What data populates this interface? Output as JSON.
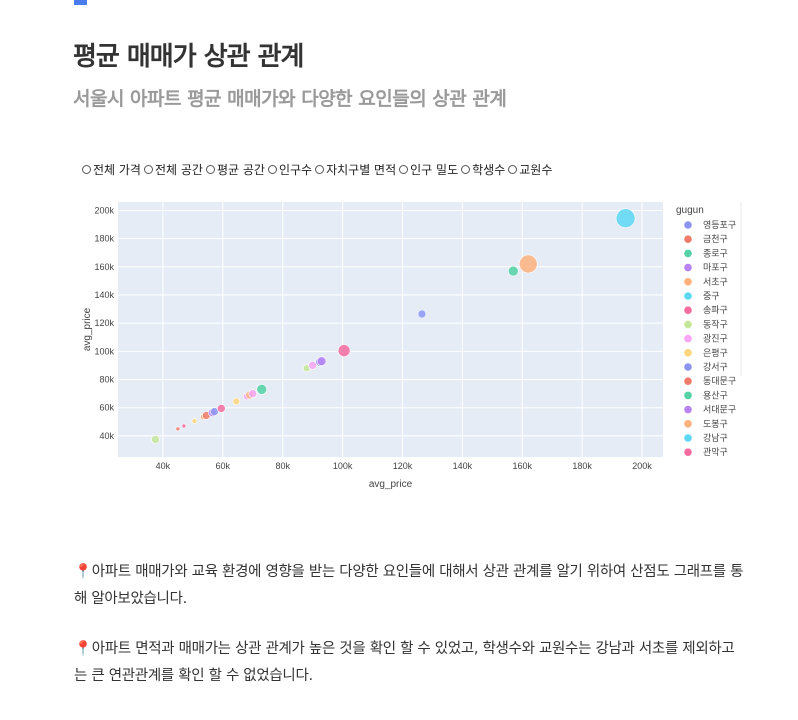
{
  "header": {
    "title": "평균 매매가 상관 관계",
    "subtitle": "서울시 아파트 평균 매매가와 다양한 요인들의 상관 관계"
  },
  "radio_options": [
    "전체 가격",
    "전체 공간",
    "평균 공간",
    "인구수",
    "자치구별 면적",
    "인구 밀도",
    "학생수",
    "교원수"
  ],
  "chart_data": {
    "type": "scatter",
    "title": "",
    "xlabel": "avg_price",
    "ylabel": "avg_price",
    "xlim": [
      25000,
      207000
    ],
    "ylim": [
      25000,
      206000
    ],
    "xticks": [
      40000,
      60000,
      80000,
      100000,
      120000,
      140000,
      160000,
      180000,
      200000
    ],
    "yticks": [
      40000,
      60000,
      80000,
      100000,
      120000,
      140000,
      160000,
      180000,
      200000
    ],
    "xtick_labels": [
      "40k",
      "60k",
      "80k",
      "100k",
      "120k",
      "140k",
      "160k",
      "180k",
      "200k"
    ],
    "ytick_labels": [
      "40k",
      "60k",
      "80k",
      "100k",
      "120k",
      "140k",
      "160k",
      "180k",
      "200k"
    ],
    "legend_title": "gugun",
    "legend_position": "right",
    "legend_entries": [
      {
        "name": "영등포구",
        "color": "#8c96f2"
      },
      {
        "name": "금천구",
        "color": "#ef7c6a"
      },
      {
        "name": "종로구",
        "color": "#53d2a6"
      },
      {
        "name": "마포구",
        "color": "#b983f2"
      },
      {
        "name": "서초구",
        "color": "#fdb27c"
      },
      {
        "name": "중구",
        "color": "#5dd8f4"
      },
      {
        "name": "송파구",
        "color": "#f66ba0"
      },
      {
        "name": "동작구",
        "color": "#c5e69a"
      },
      {
        "name": "광진구",
        "color": "#f8a5f5"
      },
      {
        "name": "은평구",
        "color": "#fcd67c"
      },
      {
        "name": "강서구",
        "color": "#8c96f2"
      },
      {
        "name": "동대문구",
        "color": "#ef7c6a"
      },
      {
        "name": "용산구",
        "color": "#53d2a6"
      },
      {
        "name": "서대문구",
        "color": "#b983f2"
      },
      {
        "name": "도봉구",
        "color": "#fdb27c"
      },
      {
        "name": "강남구",
        "color": "#5dd8f4"
      },
      {
        "name": "관악구",
        "color": "#f66ba0"
      }
    ],
    "points": [
      {
        "x": 37500,
        "y": 37500,
        "size": 4,
        "color": "#c5e69a"
      },
      {
        "x": 45000,
        "y": 45000,
        "size": 2,
        "color": "#ef7c6a"
      },
      {
        "x": 47000,
        "y": 47000,
        "size": 2,
        "color": "#f66ba0"
      },
      {
        "x": 50500,
        "y": 50500,
        "size": 2.5,
        "color": "#fcd67c"
      },
      {
        "x": 53500,
        "y": 53500,
        "size": 3,
        "color": "#fdb27c"
      },
      {
        "x": 54500,
        "y": 54500,
        "size": 4,
        "color": "#ef7c6a"
      },
      {
        "x": 56500,
        "y": 56500,
        "size": 4,
        "color": "#b983f2"
      },
      {
        "x": 57200,
        "y": 57200,
        "size": 4,
        "color": "#8c96f2"
      },
      {
        "x": 59500,
        "y": 59500,
        "size": 4,
        "color": "#f66ba0"
      },
      {
        "x": 64500,
        "y": 64500,
        "size": 3.5,
        "color": "#fcd67c"
      },
      {
        "x": 68000,
        "y": 68000,
        "size": 3.5,
        "color": "#f8a5f5"
      },
      {
        "x": 69000,
        "y": 69000,
        "size": 4,
        "color": "#fdb27c"
      },
      {
        "x": 70000,
        "y": 70000,
        "size": 4,
        "color": "#f8a5f5"
      },
      {
        "x": 73000,
        "y": 73000,
        "size": 5,
        "color": "#53d2a6"
      },
      {
        "x": 88000,
        "y": 88000,
        "size": 3.5,
        "color": "#c5e69a"
      },
      {
        "x": 90000,
        "y": 90000,
        "size": 4,
        "color": "#f8a5f5"
      },
      {
        "x": 92500,
        "y": 92500,
        "size": 4.5,
        "color": "#8c96f2"
      },
      {
        "x": 93000,
        "y": 93000,
        "size": 4.5,
        "color": "#b983f2"
      },
      {
        "x": 100500,
        "y": 100500,
        "size": 6,
        "color": "#f66ba0"
      },
      {
        "x": 126500,
        "y": 126500,
        "size": 4,
        "color": "#8c96f2"
      },
      {
        "x": 157000,
        "y": 157000,
        "size": 5,
        "color": "#53d2a6"
      },
      {
        "x": 162000,
        "y": 162000,
        "size": 9,
        "color": "#fdb27c"
      },
      {
        "x": 194500,
        "y": 194500,
        "size": 9.5,
        "color": "#5dd8f4"
      }
    ]
  },
  "paragraphs": [
    {
      "pin": "📍",
      "text": "아파트 매매가와 교육 환경에 영향을 받는 다양한 요인들에 대해서 상관 관계를 알기 위하여 산점도 그래프를 통해 알아보았습니다."
    },
    {
      "pin": "📍",
      "text": "아파트 면적과 매매가는 상관 관계가 높은 것을 확인 할 수 있었고, 학생수와 교원수는 강남과 서초를 제외하고는 큰 연관관계를 확인 할 수 없었습니다."
    }
  ]
}
